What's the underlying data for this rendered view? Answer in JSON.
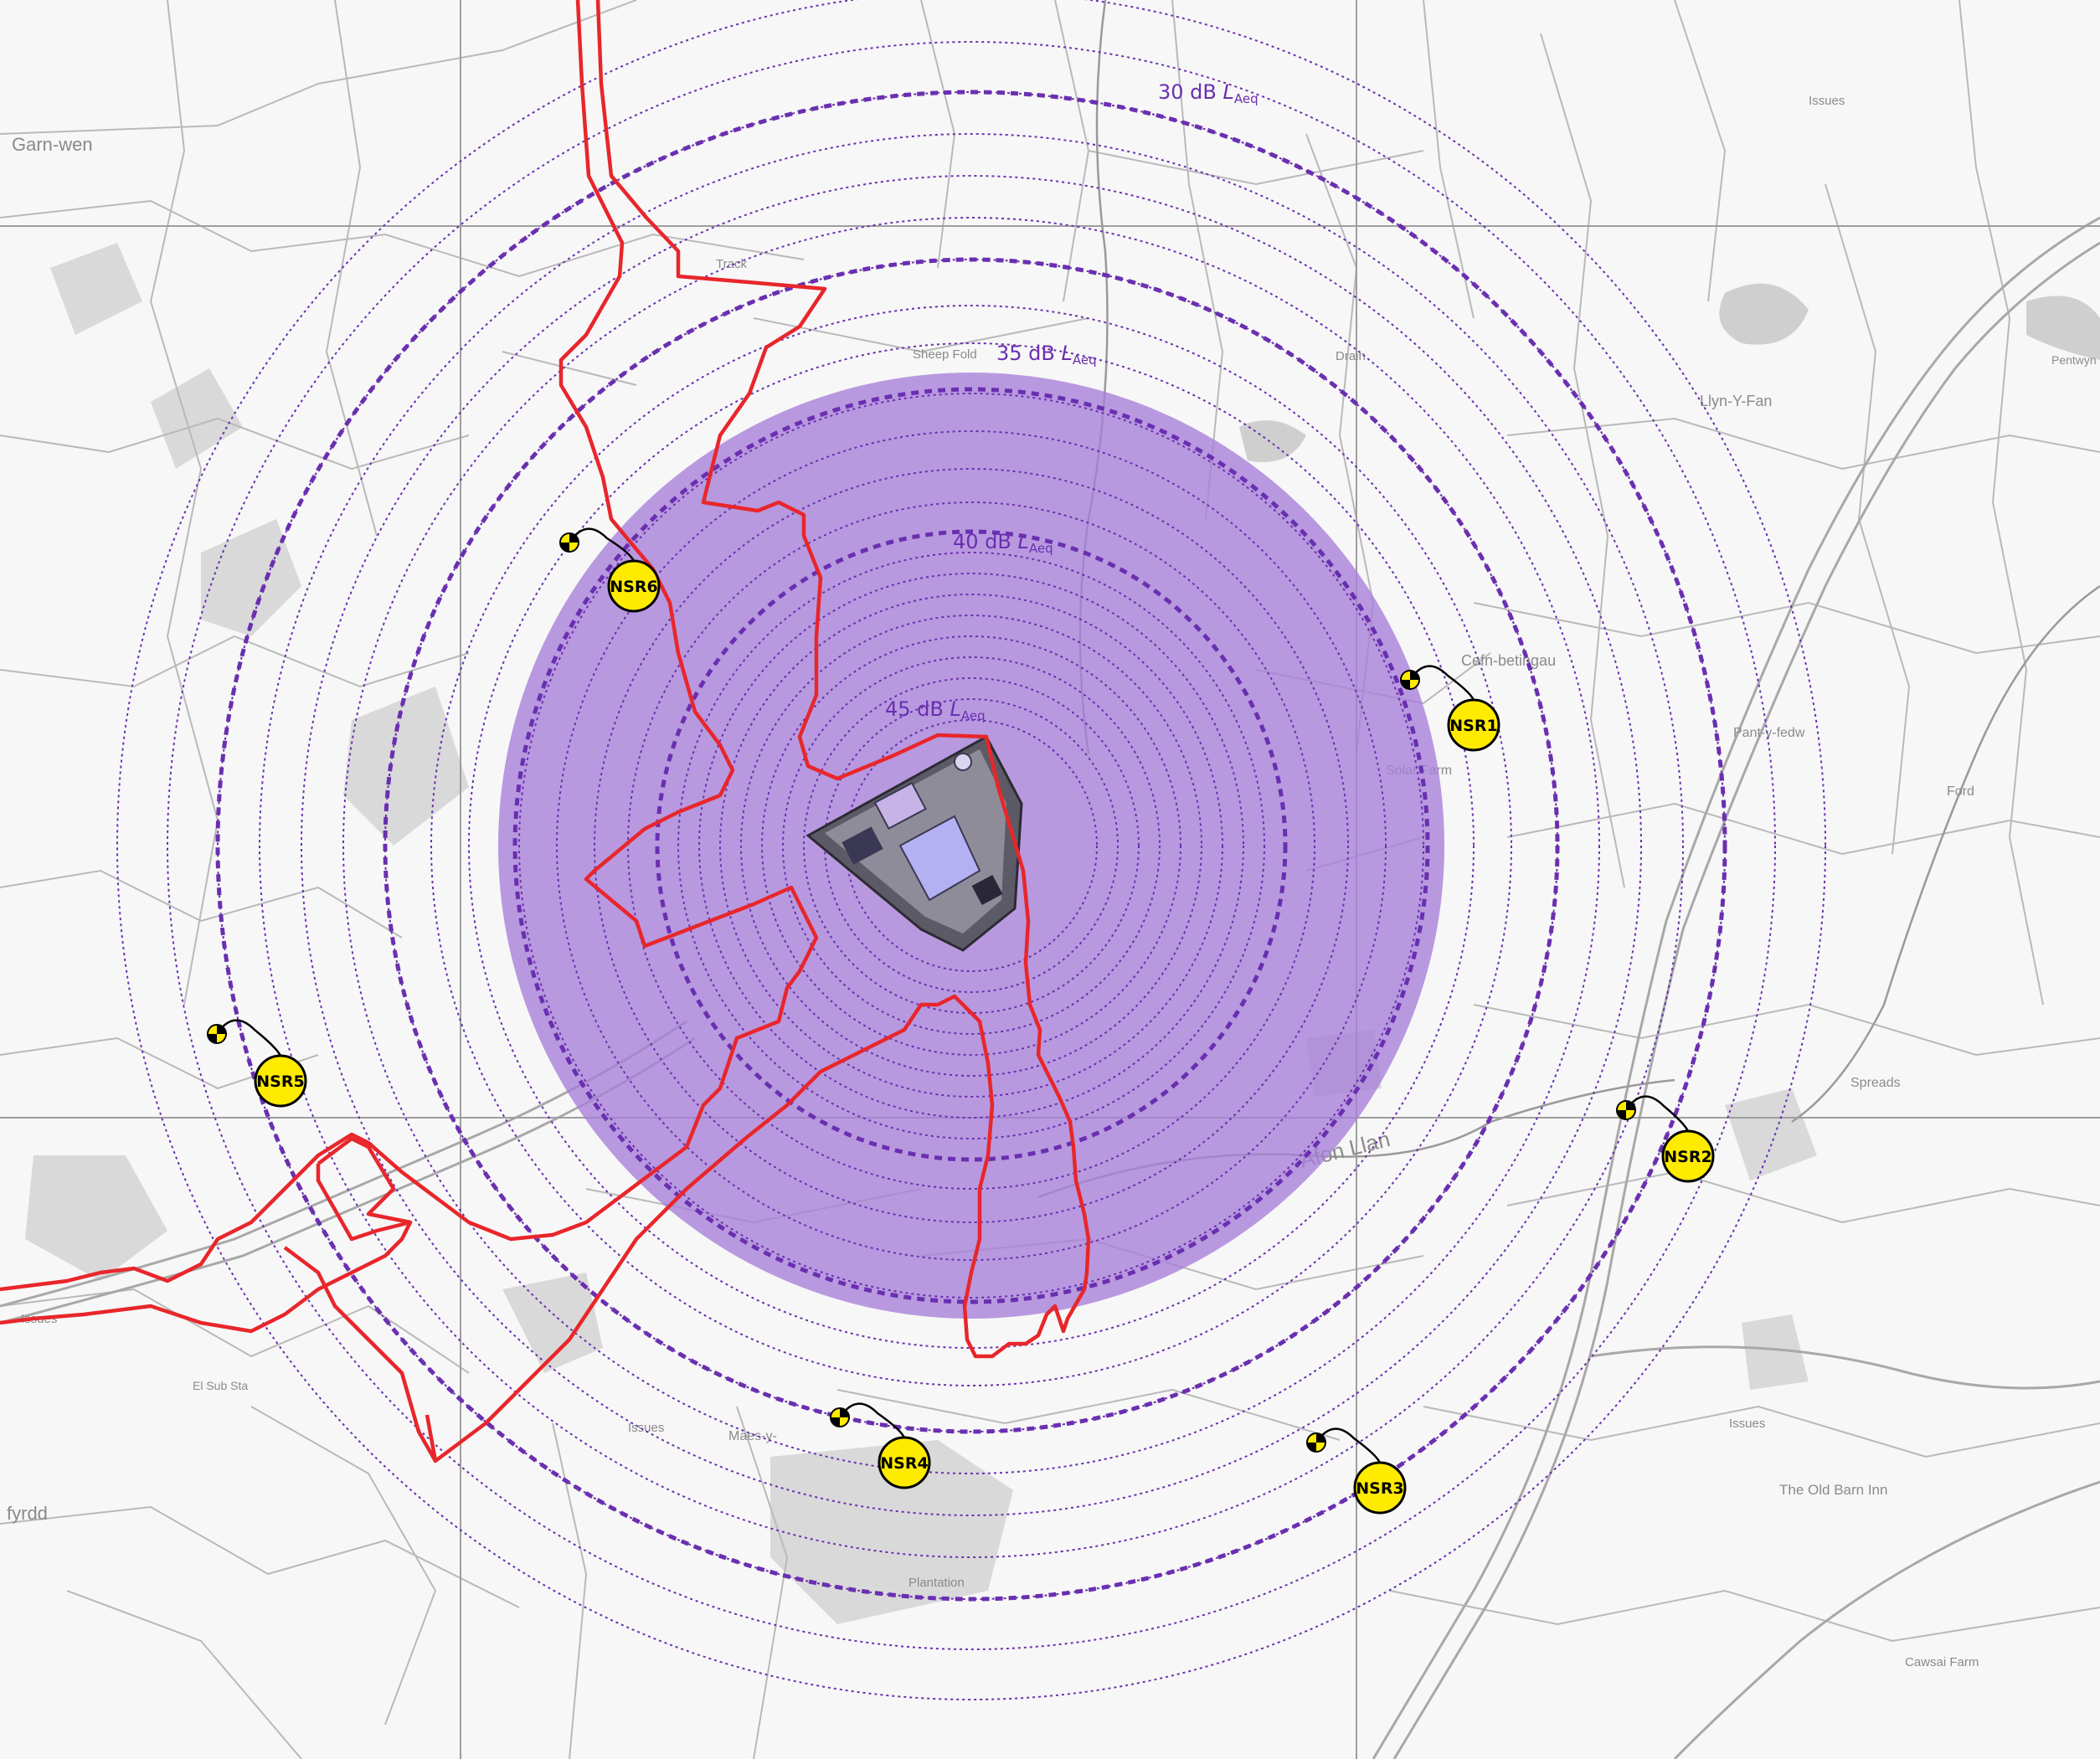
{
  "colors": {
    "paper": "#f7f7f7",
    "field_line": "#b9b9b9",
    "grid_line": "#9e9e9e",
    "woodland": "#d6d6d6",
    "water": "#cfcfcf",
    "boundary_red": "#e8262b",
    "contour_purple": "#6a2fb0",
    "zone_fill": "#a77fd9",
    "site_fill": "#5c5a66",
    "receptor_yellow": "#ffeb00"
  },
  "contour_labels": [
    {
      "id": "c30",
      "value": "30 dB",
      "sub": "Aeq",
      "main_ring": true
    },
    {
      "id": "c35",
      "value": "35 dB",
      "sub": "Aeq",
      "main_ring": true
    },
    {
      "id": "c40",
      "value": "40 dB",
      "sub": "Aeq",
      "main_ring": true
    },
    {
      "id": "c45",
      "value": "45 dB",
      "sub": "Aeq",
      "main_ring": true
    }
  ],
  "contour_letter": "L",
  "receptors": [
    {
      "id": "NSR1",
      "label": "NSR1",
      "icon": "noise-receptor-icon"
    },
    {
      "id": "NSR2",
      "label": "NSR2",
      "icon": "noise-receptor-icon"
    },
    {
      "id": "NSR3",
      "label": "NSR3",
      "icon": "noise-receptor-icon"
    },
    {
      "id": "NSR4",
      "label": "NSR4",
      "icon": "noise-receptor-icon"
    },
    {
      "id": "NSR5",
      "label": "NSR5",
      "icon": "noise-receptor-icon"
    },
    {
      "id": "NSR6",
      "label": "NSR6",
      "icon": "noise-receptor-icon"
    }
  ],
  "place_labels": {
    "garn_wen": "Garn-wen",
    "llyn_y_fan": "Llyn-Y-Fan",
    "cefn_betingau": "Cefn-betingau",
    "solar_farm": "Solar Farm",
    "pant_y_ffa": "Pant-y-fedw",
    "ford": "Ford",
    "spreads": "Spreads",
    "afon_llan": "Afon Llan",
    "the_old_barn_inn": "The Old Barn Inn",
    "cawsai_farm": "Cawsai Farm",
    "issues_1": "Issues",
    "issues_2": "Issues",
    "issues_3": "Issues",
    "issues_4": "Issues",
    "el_sub_sta": "El Sub Sta",
    "track": "Track",
    "drain": "Drain",
    "fyrdd": "fyrdd",
    "pentwyn": "Pentwyn",
    "sheep_fold": "Sheep Fold",
    "maes": "Maes-y-",
    "plantation": "Plantation"
  }
}
